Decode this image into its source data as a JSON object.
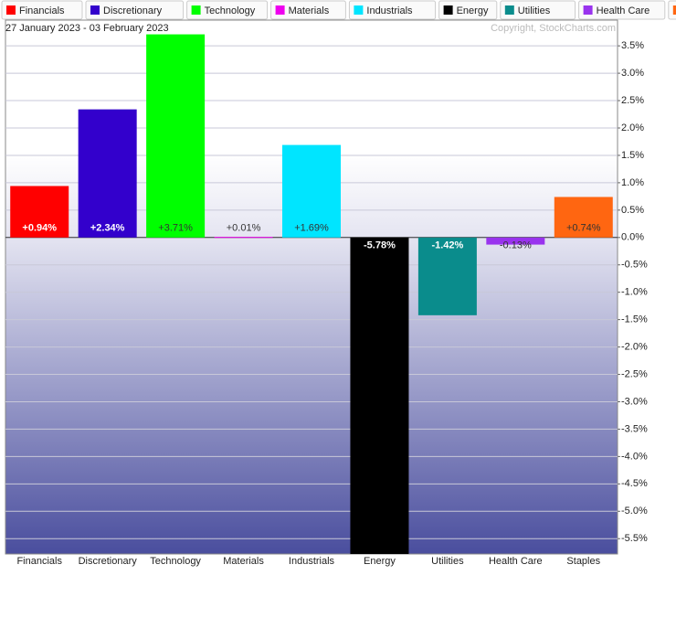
{
  "chart_data": {
    "type": "bar",
    "subtitle": "27 January 2023 - 03 February 2023",
    "credit": "Copyright, StockCharts.com",
    "categories": [
      "Financials",
      "Discretionary",
      "Technology",
      "Materials",
      "Industrials",
      "Energy",
      "Utilities",
      "Health Care",
      "Staples"
    ],
    "values": [
      0.94,
      2.34,
      3.71,
      0.01,
      1.69,
      -5.78,
      -1.42,
      -0.13,
      0.74
    ],
    "value_labels": [
      "+0.94%",
      "+2.34%",
      "+3.71%",
      "+0.01%",
      "+1.69%",
      "-5.78%",
      "-1.42%",
      "-0.13%",
      "+0.74%"
    ],
    "colors": [
      "#ff0000",
      "#3300cc",
      "#00ff00",
      "#ee00ee",
      "#00e5ff",
      "#000000",
      "#0a8c8c",
      "#9933ee",
      "#ff6611"
    ],
    "ylim": [
      -5.78,
      3.97
    ],
    "yticks": [
      {
        "value": 3.5,
        "label": "3.5%"
      },
      {
        "value": 3.0,
        "label": "3.0%"
      },
      {
        "value": 2.5,
        "label": "2.5%"
      },
      {
        "value": 2.0,
        "label": "2.0%"
      },
      {
        "value": 1.5,
        "label": "1.5%"
      },
      {
        "value": 1.0,
        "label": "1.0%"
      },
      {
        "value": 0.5,
        "label": "0.5%"
      },
      {
        "value": 0,
        "label": "0.0%"
      },
      {
        "value": -0.5,
        "label": "-0.5%"
      },
      {
        "value": -1.0,
        "label": "-1.0%"
      },
      {
        "value": -1.5,
        "label": "-1.5%"
      },
      {
        "value": -2.0,
        "label": "-2.0%"
      },
      {
        "value": -2.5,
        "label": "-2.5%"
      },
      {
        "value": -3.0,
        "label": "-3.0%"
      },
      {
        "value": -3.5,
        "label": "-3.5%"
      },
      {
        "value": -4.0,
        "label": "-4.0%"
      },
      {
        "value": -4.5,
        "label": "-4.5%"
      },
      {
        "value": -5.0,
        "label": "-5.0%"
      },
      {
        "value": -5.5,
        "label": "-5.5%"
      }
    ],
    "grid": true
  }
}
